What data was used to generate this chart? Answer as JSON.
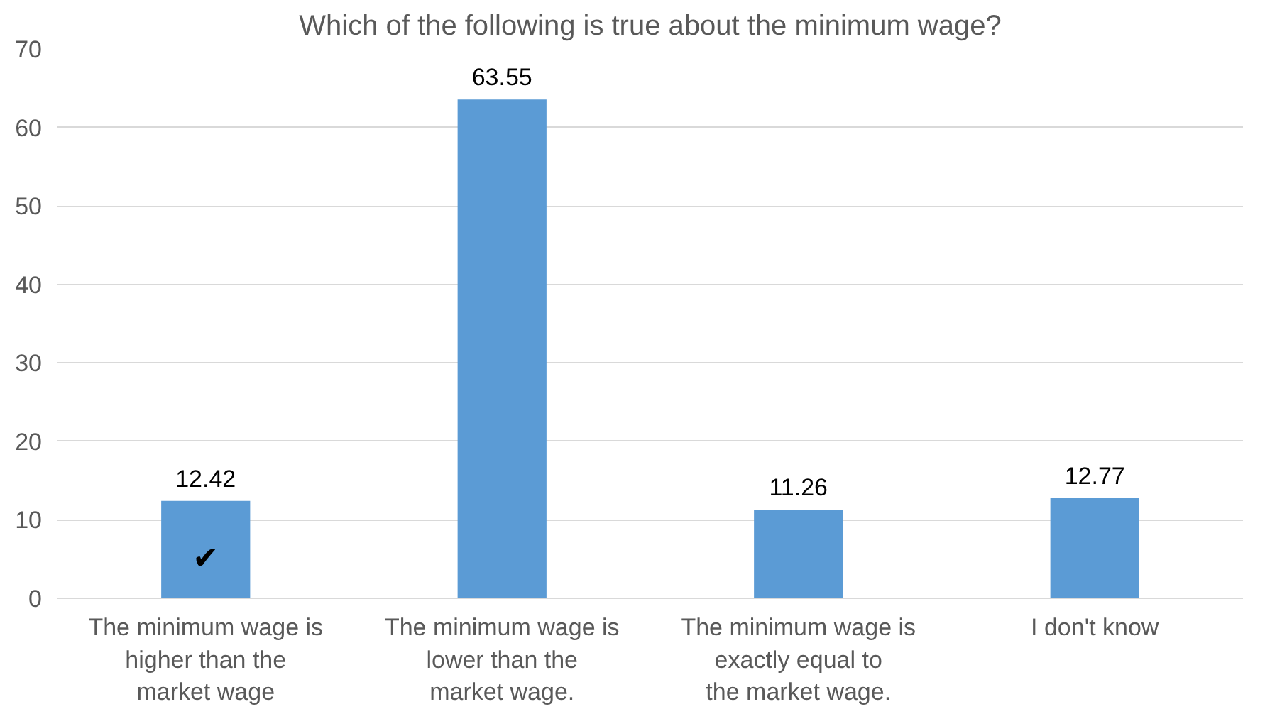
{
  "chart_data": {
    "type": "bar",
    "title": "Which of the following is true about the minimum wage?",
    "categories": [
      "The minimum wage is higher than the market wage",
      "The minimum wage is lower than the market wage.",
      "The minimum wage is exactly equal to the market wage.",
      "I don't know"
    ],
    "values": [
      12.42,
      63.55,
      11.26,
      12.77
    ],
    "color": "#5b9bd5",
    "data_labels": true,
    "ylim": [
      0,
      70
    ],
    "yticks": [
      0,
      10,
      20,
      30,
      40,
      50,
      60,
      70
    ],
    "grid": "y",
    "annotations": [
      "✔"
    ]
  }
}
